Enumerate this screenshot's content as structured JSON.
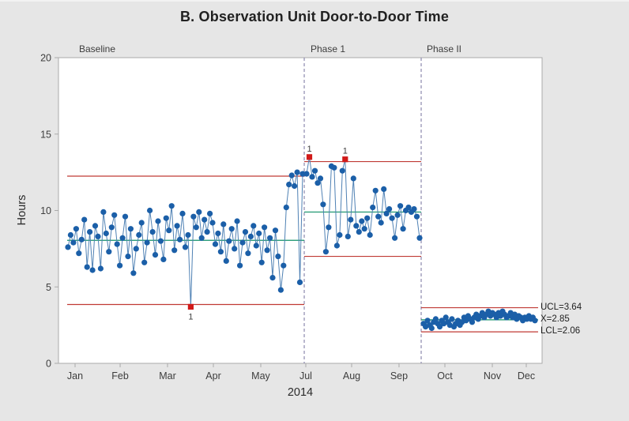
{
  "chart_data": {
    "type": "line",
    "subtype": "individuals-control-chart",
    "title": "B. Observation Unit Door-to-Door Time",
    "ylabel": "Hours",
    "xlabel": "2014",
    "ylim": [
      0,
      20
    ],
    "yticks": [
      0,
      5,
      10,
      15,
      20
    ],
    "grid": false,
    "xticks": [
      {
        "label": "Jan",
        "x": 0.0343
      },
      {
        "label": "Feb",
        "x": 0.1275
      },
      {
        "label": "Mar",
        "x": 0.2255
      },
      {
        "label": "Apr",
        "x": 0.3203
      },
      {
        "label": "May",
        "x": 0.4183
      },
      {
        "label": "Jul",
        "x": 0.5114
      },
      {
        "label": "Aug",
        "x": 0.6062
      },
      {
        "label": "Sep",
        "x": 0.7042
      },
      {
        "label": "Oct",
        "x": 0.799
      },
      {
        "label": "Nov",
        "x": 0.8971
      },
      {
        "label": "Dec",
        "x": 0.9673
      }
    ],
    "dividers": [
      0.5082,
      0.75
    ],
    "annotations": {
      "ucl": "UCL=3.64",
      "center": "X=2.85",
      "lcl": "LCL=2.06"
    },
    "colors": {
      "point": "#1b5fa8",
      "connector": "#4f81b4",
      "limit_line": "#c03a34",
      "center_line": "#109168",
      "outlier": "#d11a19",
      "divider": "#8d89ae",
      "frame": "#ababab"
    },
    "phases": [
      {
        "name": "Baseline",
        "label": "Baseline",
        "label_x": 0.0425,
        "x_from": 0.018,
        "x_to": 0.5082,
        "ucl": 12.25,
        "cl": 8.05,
        "lcl": 3.85,
        "points_x_from": 0.0196,
        "points_x_to": 0.5049,
        "values": [
          7.6,
          8.4,
          7.9,
          8.8,
          7.2,
          8.1,
          9.4,
          6.3,
          8.6,
          6.1,
          9.0,
          8.3,
          6.2,
          9.9,
          8.5,
          7.3,
          8.9,
          9.7,
          7.8,
          6.4,
          8.2,
          9.6,
          7.0,
          8.8,
          5.9,
          7.5,
          8.4,
          9.2,
          6.6,
          7.9,
          10.0,
          8.6,
          7.1,
          9.3,
          8.0,
          6.8,
          9.5,
          8.7,
          10.3,
          7.4,
          9.0,
          8.1,
          9.8,
          7.6,
          8.4,
          3.7,
          9.6,
          8.9,
          9.9,
          8.2,
          9.4,
          8.6,
          9.8,
          9.2,
          7.8,
          8.5,
          7.3,
          9.1,
          6.7,
          8.0,
          8.8,
          7.5,
          9.3,
          6.4,
          7.9,
          8.6,
          7.2,
          8.3,
          9.0,
          7.7,
          8.5,
          6.6,
          8.9,
          7.4,
          8.2,
          5.6,
          8.7,
          7.0,
          4.8,
          6.4,
          10.2,
          11.7,
          12.3,
          11.6,
          12.5,
          5.3,
          12.4
        ],
        "outliers": [
          {
            "index": 45,
            "label": "1",
            "label_pos": "below"
          }
        ]
      },
      {
        "name": "Phase 1",
        "label": "Phase 1",
        "label_x": 0.5212,
        "x_from": 0.5082,
        "x_to": 0.75,
        "ucl": 13.2,
        "cl": 9.9,
        "lcl": 7.0,
        "points_x_from": 0.5131,
        "points_x_to": 0.7467,
        "values": [
          12.4,
          13.5,
          12.2,
          12.6,
          11.8,
          12.1,
          10.4,
          7.3,
          8.9,
          12.9,
          12.8,
          7.7,
          8.4,
          12.6,
          13.35,
          8.3,
          9.4,
          12.1,
          9.0,
          8.6,
          9.3,
          8.8,
          9.5,
          8.4,
          10.2,
          11.3,
          9.6,
          9.2,
          11.4,
          9.8,
          10.1,
          9.5,
          8.2,
          9.7,
          10.3,
          8.8,
          10.0,
          10.2,
          9.9,
          10.1,
          9.6,
          8.2
        ],
        "outliers": [
          {
            "index": 1,
            "label": "1",
            "label_pos": "above"
          },
          {
            "index": 14,
            "label": "1",
            "label_pos": "above"
          }
        ]
      },
      {
        "name": "Phase II",
        "label": "Phase II",
        "label_x": 0.7614,
        "x_from": 0.75,
        "x_to": 0.9918,
        "ucl": 3.64,
        "cl": 2.85,
        "lcl": 2.06,
        "points_x_from": 0.7549,
        "points_x_to": 0.9853,
        "values": [
          2.6,
          2.4,
          2.8,
          2.5,
          2.3,
          2.7,
          2.9,
          2.6,
          2.4,
          2.8,
          2.6,
          3.0,
          2.7,
          2.5,
          2.9,
          2.4,
          2.6,
          2.8,
          2.5,
          2.7,
          3.0,
          2.8,
          3.1,
          2.9,
          2.7,
          3.0,
          3.2,
          2.9,
          3.1,
          3.3,
          3.0,
          3.2,
          3.4,
          3.1,
          3.3,
          3.2,
          3.0,
          3.3,
          3.1,
          3.4,
          3.2,
          3.0,
          3.1,
          3.3,
          3.0,
          3.2,
          2.9,
          3.1,
          3.0,
          2.8,
          3.0,
          2.9,
          3.1,
          2.9,
          3.0,
          2.8
        ],
        "outliers": []
      }
    ]
  }
}
